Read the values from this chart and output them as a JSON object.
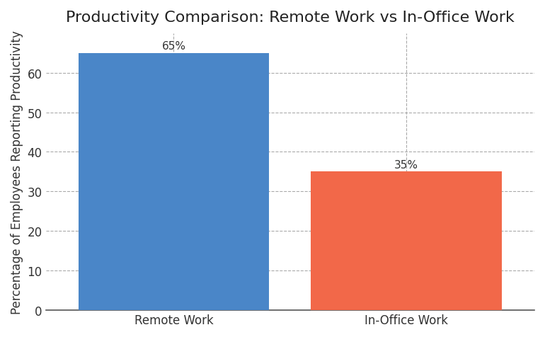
{
  "title": "Productivity Comparison: Remote Work vs In-Office Work",
  "categories": [
    "Remote Work",
    "In-Office Work"
  ],
  "values": [
    65,
    35
  ],
  "bar_colors": [
    "#4a86c8",
    "#f26849"
  ],
  "bar_labels": [
    "65%",
    "35%"
  ],
  "ylabel": "Percentage of Employees Reporting Productivity",
  "ylim": [
    0,
    70
  ],
  "yticks": [
    0,
    10,
    20,
    30,
    40,
    50,
    60
  ],
  "grid_color": "#aaaaaa",
  "background_color": "#ffffff",
  "title_fontsize": 16,
  "label_fontsize": 12,
  "tick_fontsize": 12,
  "bar_label_fontsize": 11,
  "bar_width": 0.82,
  "bar_positions": [
    0,
    1
  ]
}
